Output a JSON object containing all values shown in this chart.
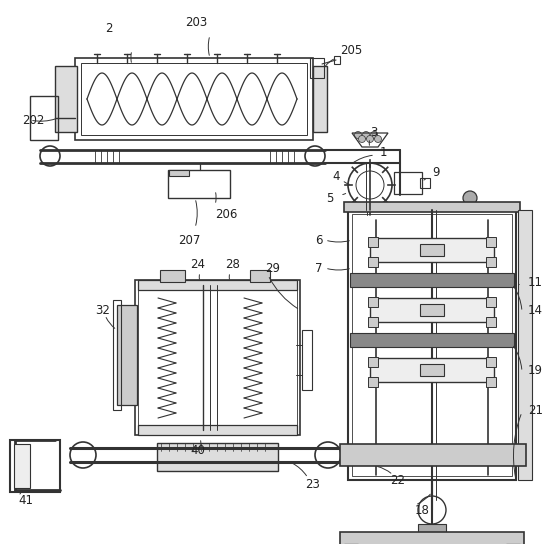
{
  "bg_color": "#ffffff",
  "lc": "#333333",
  "lc2": "#555555",
  "figsize": [
    5.49,
    5.44
  ],
  "dpi": 100
}
